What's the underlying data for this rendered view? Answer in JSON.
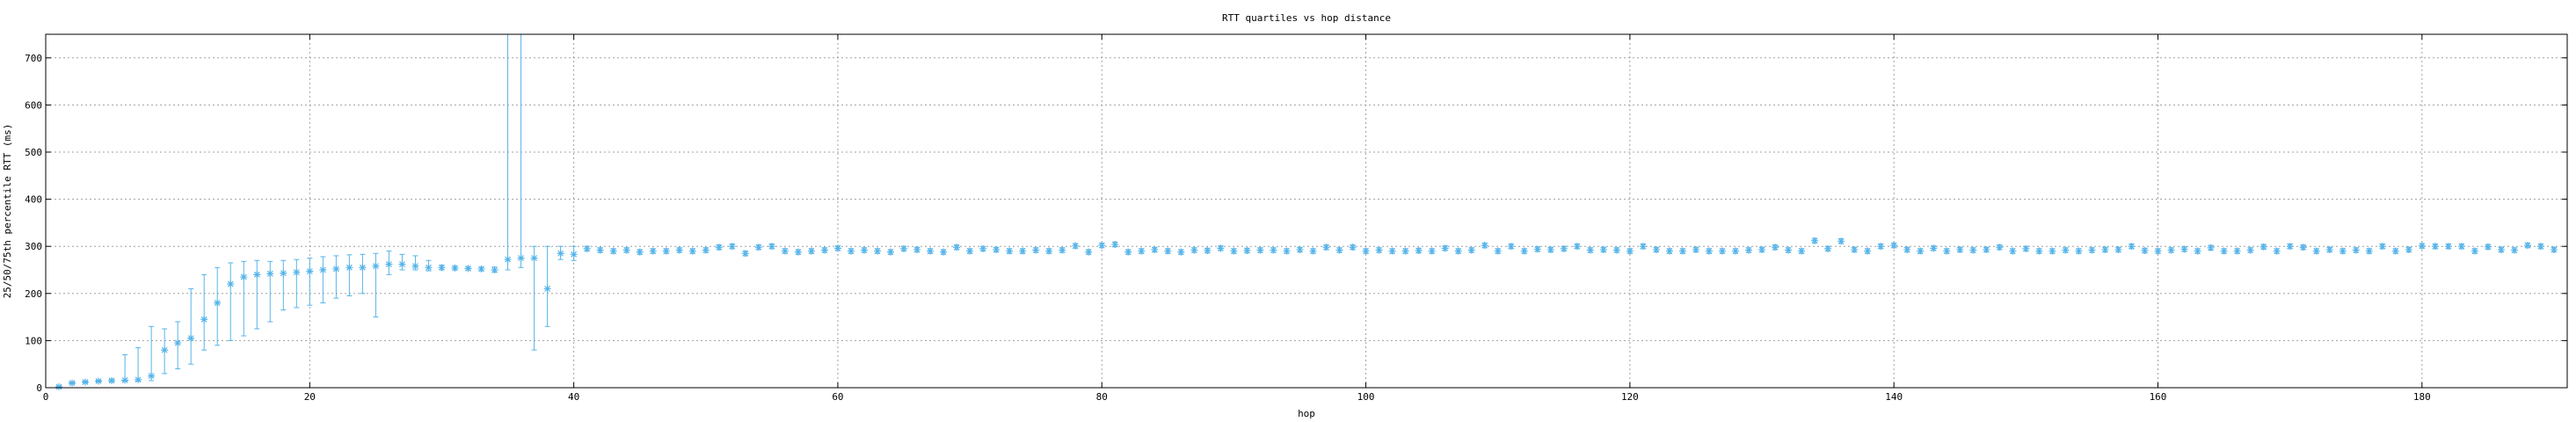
{
  "chart_data": {
    "type": "scatter",
    "title": "RTT quartiles vs hop distance",
    "xlabel": "hop",
    "ylabel": "25/50/75th percentile RTT (ms)",
    "xlim": [
      0,
      191
    ],
    "ylim": [
      0,
      750
    ],
    "xticks": [
      0,
      20,
      40,
      60,
      80,
      100,
      120,
      140,
      160,
      180
    ],
    "yticks": [
      0,
      100,
      200,
      300,
      400,
      500,
      600,
      700
    ],
    "grid": true,
    "legend": "none",
    "marker_color": "#56b4e9",
    "series": [
      {
        "x": [
          1,
          2,
          3,
          4,
          5,
          6,
          7,
          8,
          9,
          10,
          11,
          12,
          13,
          14,
          15,
          16,
          17,
          18,
          19,
          20,
          21,
          22,
          23,
          24,
          25,
          26,
          27,
          28,
          29,
          30,
          31,
          32,
          33,
          34,
          35,
          36,
          37,
          38,
          39,
          40
        ],
        "y": [
          2,
          10,
          12,
          14,
          15,
          16,
          17,
          25,
          80,
          95,
          105,
          145,
          180,
          220,
          235,
          240,
          242,
          243,
          245,
          247,
          250,
          252,
          255,
          255,
          258,
          262,
          262,
          258,
          255,
          255,
          254,
          253,
          252,
          250,
          272,
          275,
          275,
          210,
          285,
          283
        ],
        "q25": [
          0,
          8,
          10,
          12,
          13,
          14,
          14,
          15,
          30,
          40,
          50,
          80,
          90,
          100,
          110,
          125,
          140,
          165,
          170,
          175,
          180,
          190,
          195,
          200,
          150,
          240,
          250,
          250,
          248,
          250,
          250,
          250,
          248,
          245,
          250,
          255,
          80,
          130,
          272,
          270
        ],
        "q75": [
          4,
          12,
          14,
          16,
          18,
          70,
          85,
          130,
          125,
          140,
          210,
          240,
          255,
          265,
          268,
          270,
          268,
          270,
          272,
          275,
          278,
          280,
          282,
          283,
          285,
          290,
          283,
          280,
          270,
          260,
          258,
          257,
          256,
          256,
          760,
          760,
          300,
          300,
          300,
          300
        ]
      },
      {
        "x": [
          41,
          42,
          43,
          44,
          45,
          46,
          47,
          48,
          49,
          50,
          51,
          52,
          53,
          54,
          55,
          56,
          57,
          58,
          59,
          60,
          61,
          62,
          63,
          64,
          65,
          66,
          67,
          68,
          69,
          70,
          71,
          72,
          73,
          74,
          75,
          76,
          77,
          78,
          79,
          80,
          81,
          82,
          83,
          84,
          85,
          86,
          87,
          88,
          89,
          90,
          91,
          92,
          93,
          94,
          95,
          96,
          97,
          98,
          99,
          100,
          101,
          102,
          103,
          104,
          105,
          106,
          107,
          108,
          109,
          110,
          111,
          112,
          113,
          114,
          115,
          116,
          117,
          118,
          119,
          120,
          121,
          122,
          123,
          124,
          125,
          126,
          127,
          128,
          129,
          130,
          131,
          132,
          133,
          134,
          135,
          136,
          137,
          138,
          139,
          140,
          141,
          142,
          143,
          144,
          145,
          146,
          147,
          148,
          149,
          150,
          151,
          152,
          153,
          154,
          155,
          156,
          157,
          158,
          159,
          160,
          161,
          162,
          163,
          164,
          165,
          166,
          167,
          168,
          169,
          170,
          171,
          172,
          173,
          174,
          175,
          176,
          177,
          178,
          179,
          180,
          181,
          182,
          183,
          184,
          185,
          186,
          187,
          188,
          189,
          190
        ],
        "y": [
          295,
          292,
          290,
          292,
          288,
          290,
          290,
          292,
          290,
          292,
          298,
          300,
          285,
          298,
          300,
          290,
          288,
          290,
          292,
          296,
          290,
          292,
          290,
          288,
          295,
          293,
          290,
          288,
          298,
          290,
          295,
          293,
          290,
          290,
          292,
          290,
          292,
          301,
          288,
          302,
          304,
          288,
          290,
          293,
          290,
          288,
          292,
          291,
          296,
          290,
          291,
          292,
          292,
          290,
          293,
          290,
          298,
          292,
          298,
          290,
          292,
          290,
          290,
          291,
          290,
          296,
          290,
          292,
          302,
          290,
          300,
          290,
          294,
          293,
          295,
          300,
          292,
          293,
          292,
          290,
          300,
          293,
          290,
          290,
          293,
          290,
          290,
          290,
          292,
          293,
          298,
          292,
          290,
          312,
          295,
          311,
          293,
          290,
          300,
          302,
          293,
          290,
          296,
          290,
          293,
          292,
          293,
          298,
          290,
          295,
          290,
          290,
          292,
          290,
          292,
          293,
          293,
          300,
          291,
          290,
          292,
          294,
          290,
          297,
          290,
          290,
          292,
          299,
          290,
          300,
          298,
          290,
          293,
          290,
          292,
          290,
          300,
          290,
          293,
          301,
          300,
          300,
          300,
          290,
          299,
          293,
          292,
          302,
          300,
          293
        ],
        "q25": [
          290,
          287,
          285,
          287,
          283,
          285,
          285,
          287,
          285,
          287,
          293,
          295,
          280,
          293,
          295,
          285,
          283,
          285,
          287,
          291,
          285,
          287,
          285,
          283,
          290,
          288,
          285,
          283,
          293,
          285,
          290,
          288,
          285,
          285,
          287,
          285,
          287,
          296,
          283,
          297,
          299,
          283,
          285,
          288,
          285,
          283,
          287,
          286,
          291,
          285,
          286,
          287,
          287,
          285,
          288,
          285,
          293,
          287,
          293,
          285,
          287,
          285,
          285,
          286,
          285,
          291,
          285,
          287,
          297,
          285,
          295,
          285,
          289,
          288,
          290,
          295,
          287,
          288,
          287,
          285,
          295,
          288,
          285,
          285,
          288,
          285,
          285,
          285,
          287,
          288,
          293,
          287,
          285,
          307,
          290,
          306,
          288,
          285,
          295,
          297,
          288,
          285,
          291,
          285,
          288,
          287,
          288,
          293,
          285,
          290,
          285,
          285,
          287,
          285,
          287,
          288,
          288,
          295,
          286,
          285,
          287,
          289,
          285,
          292,
          285,
          285,
          287,
          294,
          285,
          295,
          293,
          285,
          288,
          285,
          287,
          285,
          295,
          285,
          288,
          296,
          295,
          295,
          295,
          285,
          294,
          288,
          287,
          297,
          295,
          288
        ],
        "q75": [
          300,
          297,
          295,
          297,
          293,
          295,
          295,
          297,
          295,
          297,
          303,
          305,
          290,
          303,
          305,
          295,
          293,
          295,
          297,
          301,
          295,
          297,
          295,
          293,
          300,
          298,
          295,
          293,
          303,
          295,
          300,
          298,
          295,
          295,
          297,
          295,
          297,
          306,
          293,
          307,
          309,
          293,
          295,
          298,
          295,
          293,
          297,
          296,
          301,
          295,
          296,
          297,
          297,
          295,
          298,
          295,
          303,
          297,
          303,
          295,
          297,
          295,
          295,
          296,
          295,
          301,
          295,
          297,
          307,
          295,
          305,
          295,
          299,
          298,
          300,
          305,
          297,
          298,
          297,
          295,
          305,
          298,
          295,
          295,
          298,
          295,
          295,
          295,
          297,
          298,
          303,
          297,
          295,
          317,
          300,
          316,
          298,
          295,
          305,
          307,
          298,
          295,
          301,
          295,
          298,
          297,
          298,
          303,
          295,
          300,
          295,
          295,
          297,
          295,
          297,
          298,
          298,
          305,
          296,
          295,
          297,
          299,
          295,
          302,
          295,
          295,
          297,
          304,
          295,
          305,
          303,
          295,
          298,
          295,
          297,
          295,
          305,
          295,
          298,
          306,
          305,
          305,
          305,
          295,
          304,
          298,
          297,
          307,
          305,
          298
        ]
      }
    ]
  }
}
